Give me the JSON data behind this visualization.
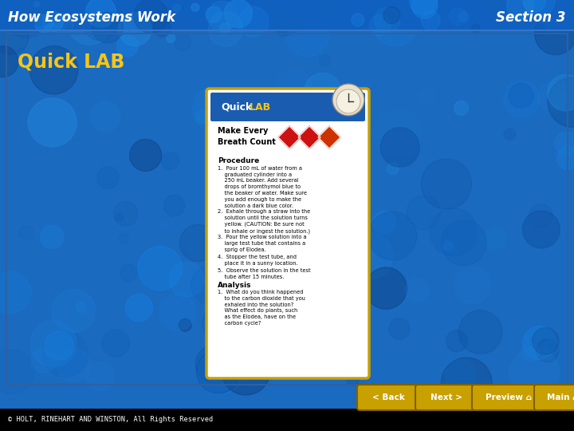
{
  "title_left": "How Ecosystems Work",
  "title_right": "Section 3",
  "subtitle": "Quick LAB",
  "copyright": "© HOLT, RINEHART AND WINSTON, All Rights Reserved",
  "bg_color_main": "#1a6abf",
  "title_color": "#ffffff",
  "subtitle_color": "#f5c518",
  "nav_btn_color": "#c8a000",
  "nav_btn_text": "#ffffff",
  "footer_bg": "#000000",
  "footer_text": "#ffffff",
  "card_border": "#c8a000",
  "card_bg": "#ffffff",
  "card_header_bg": "#1a5cb0",
  "card_header_text_lab": "#f5c518",
  "nav_buttons": [
    "< Back",
    "Next >",
    "Preview ⌂",
    "Main ⌂"
  ]
}
